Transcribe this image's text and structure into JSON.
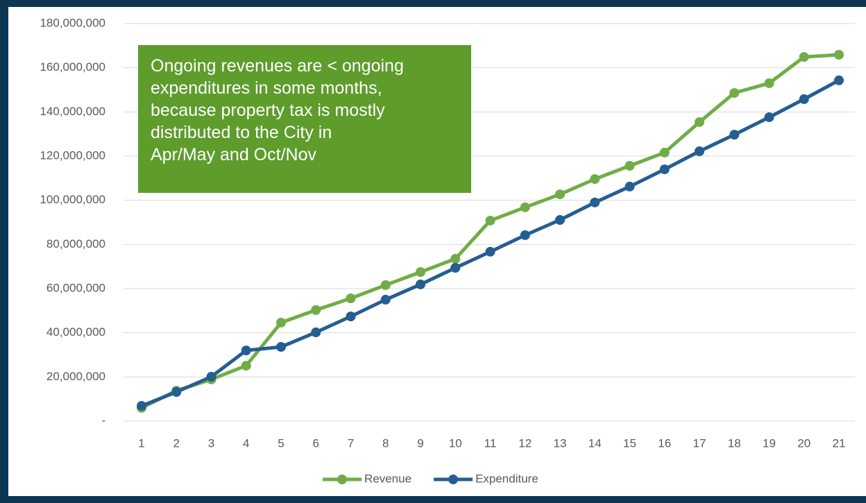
{
  "chart_data": {
    "type": "line",
    "categories": [
      "1",
      "2",
      "3",
      "4",
      "5",
      "6",
      "7",
      "8",
      "9",
      "10",
      "11",
      "12",
      "13",
      "14",
      "15",
      "16",
      "17",
      "18",
      "19",
      "20",
      "21"
    ],
    "series": [
      {
        "name": "Revenue",
        "color": "#70ad47",
        "values": [
          6000000,
          13800000,
          18900000,
          25100000,
          44600000,
          50300000,
          55600000,
          61600000,
          67500000,
          73500000,
          90800000,
          96800000,
          102700000,
          109600000,
          115600000,
          121600000,
          135400000,
          148600000,
          153000000,
          164900000,
          165900000
        ]
      },
      {
        "name": "Expenditure",
        "color": "#255e91",
        "values": [
          6900000,
          13200000,
          20100000,
          32000000,
          33600000,
          40200000,
          47400000,
          55000000,
          61900000,
          69400000,
          76700000,
          84200000,
          91100000,
          99000000,
          106200000,
          114000000,
          122200000,
          129700000,
          137600000,
          145800000,
          154300000
        ]
      }
    ],
    "ylim": [
      0,
      180000000
    ],
    "yticks": [
      {
        "value": 0,
        "label": "-"
      },
      {
        "value": 20000000,
        "label": "20,000,000"
      },
      {
        "value": 40000000,
        "label": "40,000,000"
      },
      {
        "value": 60000000,
        "label": "60,000,000"
      },
      {
        "value": 80000000,
        "label": "80,000,000"
      },
      {
        "value": 100000000,
        "label": "100,000,000"
      },
      {
        "value": 120000000,
        "label": "120,000,000"
      },
      {
        "value": 140000000,
        "label": "140,000,000"
      },
      {
        "value": 160000000,
        "label": "160,000,000"
      },
      {
        "value": 180000000,
        "label": "180,000,000"
      }
    ],
    "grid": true,
    "legend": "bottom",
    "annotation": [
      "Ongoing revenues are < ongoing",
      "expenditures in some months,",
      "because property tax is mostly",
      "distributed to the City in",
      "Apr/May and Oct/Nov"
    ]
  }
}
